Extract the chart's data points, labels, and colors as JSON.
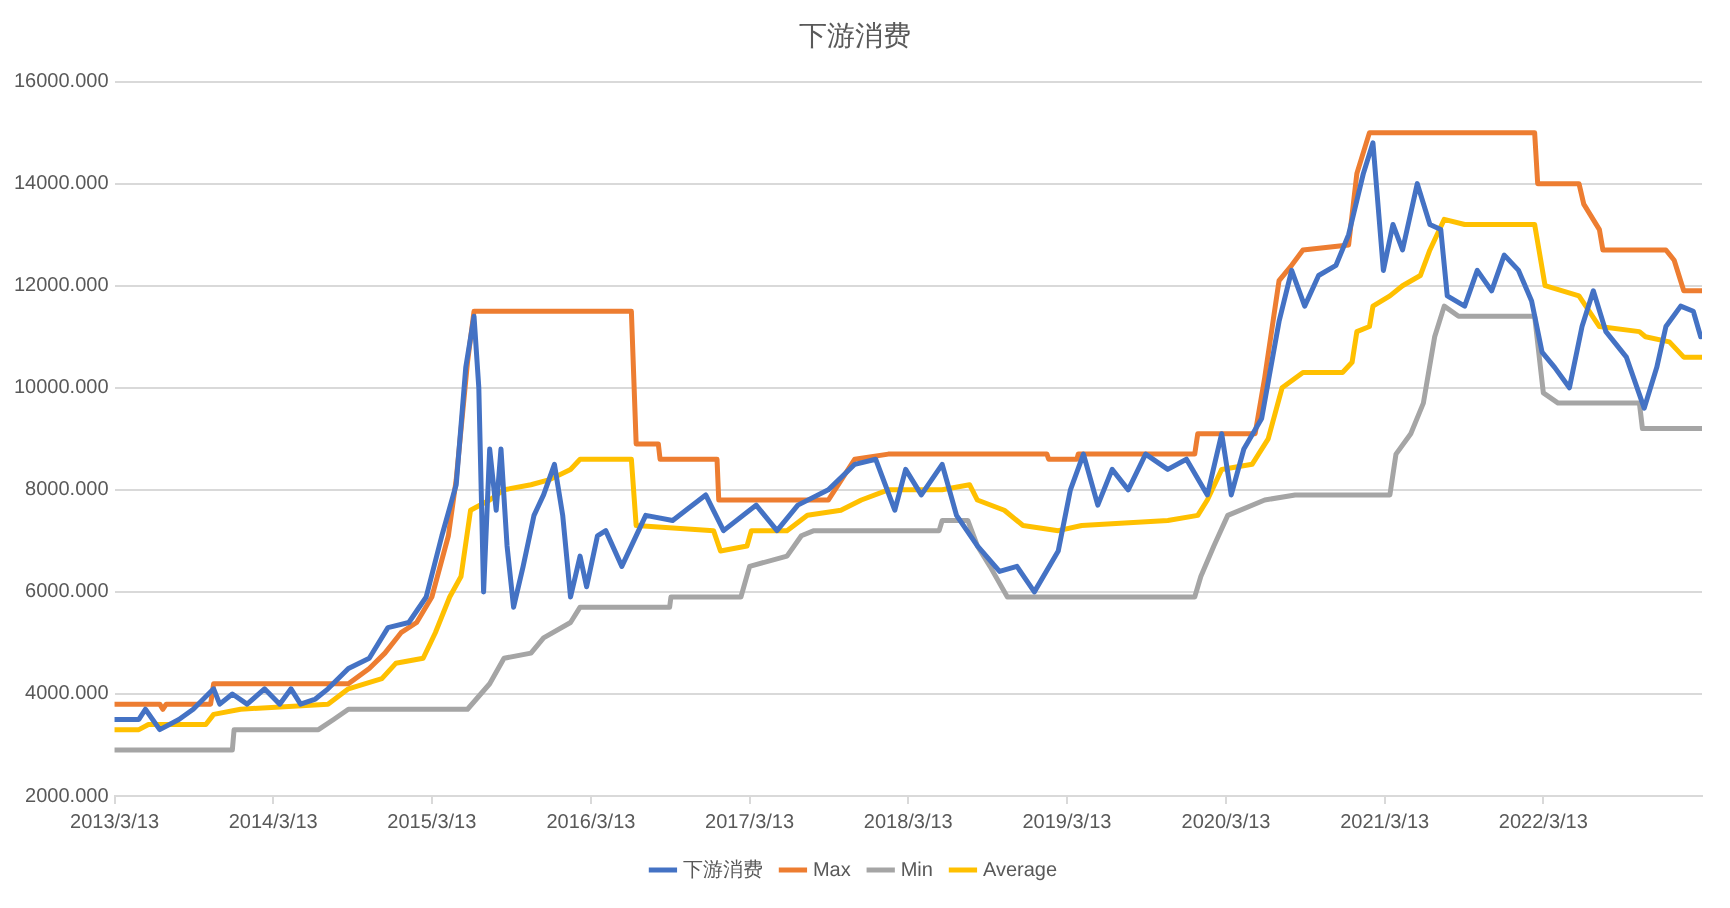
{
  "chart_data": {
    "type": "line",
    "title": "下游消费",
    "xlim": [
      "2013-03-13",
      "2023-03-13"
    ],
    "xticks": [
      {
        "value": "2013-03-13",
        "label": "2013/3/13"
      },
      {
        "value": "2014-03-13",
        "label": "2014/3/13"
      },
      {
        "value": "2015-03-13",
        "label": "2015/3/13"
      },
      {
        "value": "2016-03-13",
        "label": "2016/3/13"
      },
      {
        "value": "2017-03-13",
        "label": "2017/3/13"
      },
      {
        "value": "2018-03-13",
        "label": "2018/3/13"
      },
      {
        "value": "2019-03-13",
        "label": "2019/3/13"
      },
      {
        "value": "2020-03-13",
        "label": "2020/3/13"
      },
      {
        "value": "2021-03-13",
        "label": "2021/3/13"
      },
      {
        "value": "2022-03-13",
        "label": "2022/3/13"
      }
    ],
    "ylim": [
      2000,
      16000
    ],
    "yticks": [
      {
        "value": 2000,
        "label": "2000.000"
      },
      {
        "value": 4000,
        "label": "4000.000"
      },
      {
        "value": 6000,
        "label": "6000.000"
      },
      {
        "value": 8000,
        "label": "8000.000"
      },
      {
        "value": 10000,
        "label": "10000.000"
      },
      {
        "value": 12000,
        "label": "12000.000"
      },
      {
        "value": 14000,
        "label": "14000.000"
      },
      {
        "value": 16000,
        "label": "16000.000"
      }
    ],
    "grid": "y",
    "legend": "bottom",
    "marker": "none",
    "line_style": "solid",
    "series": [
      {
        "name": "下游消费",
        "color": "#4472c4",
        "x": [
          "2013-03-13",
          "2013-05-08",
          "2013-05-23",
          "2013-06-25",
          "2013-08-08",
          "2013-09-10",
          "2013-10-27",
          "2013-11-10",
          "2013-12-09",
          "2014-01-12",
          "2014-02-21",
          "2014-03-28",
          "2014-04-23",
          "2014-05-15",
          "2014-06-18",
          "2014-07-17",
          "2014-09-02",
          "2014-10-20",
          "2014-12-02",
          "2015-01-19",
          "2015-02-28",
          "2015-04-05",
          "2015-05-08",
          "2015-05-30",
          "2015-06-18",
          "2015-06-29",
          "2015-07-10",
          "2015-07-24",
          "2015-08-08",
          "2015-08-19",
          "2015-09-02",
          "2015-09-17",
          "2015-10-09",
          "2015-11-03",
          "2015-11-25",
          "2015-12-20",
          "2016-01-08",
          "2016-01-26",
          "2016-02-17",
          "2016-03-03",
          "2016-03-28",
          "2016-04-16",
          "2016-05-23",
          "2016-07-17",
          "2016-09-17",
          "2016-12-02",
          "2017-01-12",
          "2017-03-28",
          "2017-05-15",
          "2017-07-02",
          "2017-09-10",
          "2017-11-10",
          "2017-12-28",
          "2018-02-10",
          "2018-03-07",
          "2018-04-12",
          "2018-05-30",
          "2018-07-02",
          "2018-08-19",
          "2018-10-09",
          "2018-11-18",
          "2018-12-28",
          "2019-02-21",
          "2019-03-21",
          "2019-04-20",
          "2019-05-23",
          "2019-06-25",
          "2019-08-01",
          "2019-09-10",
          "2019-10-31",
          "2019-12-13",
          "2020-01-30",
          "2020-03-03",
          "2020-03-25",
          "2020-04-23",
          "2020-06-03",
          "2020-07-13",
          "2020-08-11",
          "2020-09-10",
          "2020-10-12",
          "2020-11-21",
          "2020-12-20",
          "2021-01-23",
          "2021-02-14",
          "2021-03-10",
          "2021-04-01",
          "2021-04-23",
          "2021-05-27",
          "2021-06-25",
          "2021-07-20",
          "2021-08-04",
          "2021-09-13",
          "2021-10-12",
          "2021-11-14",
          "2021-12-13",
          "2022-01-15",
          "2022-02-14",
          "2022-03-10",
          "2022-04-08",
          "2022-05-12",
          "2022-06-10",
          "2022-07-06",
          "2022-08-04",
          "2022-09-20",
          "2022-10-31",
          "2022-11-29",
          "2022-12-20",
          "2023-01-23",
          "2023-02-21",
          "2023-03-10"
        ],
        "values": [
          3500,
          3500,
          3700,
          3300,
          3500,
          3700,
          4100,
          3800,
          4000,
          3800,
          4100,
          3800,
          4100,
          3800,
          3900,
          4100,
          4500,
          4700,
          5300,
          5400,
          5900,
          7100,
          8100,
          10400,
          11400,
          10000,
          6000,
          8800,
          7600,
          8800,
          6900,
          5700,
          6500,
          7500,
          7900,
          8500,
          7500,
          5900,
          6700,
          6100,
          7100,
          7200,
          6500,
          7500,
          7400,
          7900,
          7200,
          7700,
          7200,
          7700,
          8000,
          8500,
          8600,
          7600,
          8400,
          7900,
          8500,
          7500,
          6900,
          6400,
          6500,
          6000,
          6800,
          8000,
          8700,
          7700,
          8400,
          8000,
          8700,
          8400,
          8600,
          7900,
          9100,
          7900,
          8800,
          9400,
          11300,
          12300,
          11600,
          12200,
          12400,
          13000,
          14200,
          14800,
          12300,
          13200,
          12700,
          14000,
          13200,
          13100,
          11800,
          11600,
          12300,
          11900,
          12600,
          12300,
          11700,
          10700,
          10400,
          10000,
          11200,
          11900,
          11100,
          10600,
          9600,
          10400,
          11200,
          11600,
          11500,
          11000
        ]
      },
      {
        "name": "Max",
        "color": "#ed7d31",
        "x": [
          "2013-03-13",
          "2013-06-25",
          "2013-07-02",
          "2013-07-10",
          "2013-10-20",
          "2013-10-27",
          "2014-09-02",
          "2014-10-20",
          "2014-11-25",
          "2015-01-01",
          "2015-02-06",
          "2015-03-13",
          "2015-04-20",
          "2015-05-08",
          "2015-06-03",
          "2015-06-18",
          "2016-06-14",
          "2016-06-25",
          "2016-08-15",
          "2016-08-19",
          "2016-12-28",
          "2017-01-01",
          "2017-09-10",
          "2017-11-10",
          "2018-01-26",
          "2019-01-26",
          "2019-01-30",
          "2019-04-05",
          "2019-04-08",
          "2020-01-01",
          "2020-01-08",
          "2020-05-19",
          "2020-06-10",
          "2020-07-13",
          "2020-08-11",
          "2020-09-06",
          "2020-12-20",
          "2021-01-08",
          "2021-02-06",
          "2022-02-21",
          "2022-02-28",
          "2022-06-03",
          "2022-06-14",
          "2022-07-20",
          "2022-07-28",
          "2022-12-20",
          "2023-01-08",
          "2023-01-30",
          "2023-03-13"
        ],
        "values": [
          3800,
          3800,
          3700,
          3800,
          3800,
          4200,
          4200,
          4500,
          4800,
          5200,
          5400,
          5900,
          7100,
          8200,
          10500,
          11500,
          11500,
          8900,
          8900,
          8600,
          8600,
          7800,
          7800,
          8600,
          8700,
          8700,
          8600,
          8600,
          8700,
          8700,
          9100,
          9100,
          10200,
          12100,
          12400,
          12700,
          12800,
          14200,
          15000,
          15000,
          14000,
          14000,
          13600,
          13100,
          12700,
          12700,
          12500,
          11900,
          11900
        ]
      },
      {
        "name": "Min",
        "color": "#a5a5a5",
        "x": [
          "2013-03-13",
          "2013-12-09",
          "2013-12-13",
          "2014-06-25",
          "2014-07-30",
          "2014-09-02",
          "2015-06-03",
          "2015-07-24",
          "2015-08-26",
          "2015-10-27",
          "2015-11-25",
          "2016-01-26",
          "2016-02-17",
          "2016-09-10",
          "2016-09-13",
          "2017-02-21",
          "2017-03-13",
          "2017-06-07",
          "2017-07-10",
          "2017-08-08",
          "2018-05-23",
          "2018-05-30",
          "2018-07-28",
          "2018-08-19",
          "2018-09-17",
          "2018-10-27",
          "2020-01-01",
          "2020-01-15",
          "2020-02-14",
          "2020-03-17",
          "2020-06-10",
          "2020-08-19",
          "2021-03-25",
          "2021-04-08",
          "2021-05-12",
          "2021-06-10",
          "2021-07-06",
          "2021-07-28",
          "2021-08-30",
          "2022-02-21",
          "2022-03-13",
          "2022-04-16",
          "2022-10-20",
          "2022-10-27",
          "2023-03-13"
        ],
        "values": [
          2900,
          2900,
          3300,
          3300,
          3500,
          3700,
          3700,
          4200,
          4700,
          4800,
          5100,
          5400,
          5700,
          5700,
          5900,
          5900,
          6500,
          6700,
          7100,
          7200,
          7200,
          7400,
          7400,
          6900,
          6500,
          5900,
          5900,
          6300,
          6900,
          7500,
          7800,
          7900,
          7900,
          8700,
          9100,
          9700,
          11000,
          11600,
          11400,
          11400,
          9900,
          9700,
          9700,
          9200,
          9200
        ]
      },
      {
        "name": "Average",
        "color": "#ffc000",
        "x": [
          "2013-03-13",
          "2013-05-08",
          "2013-05-30",
          "2013-10-09",
          "2013-10-27",
          "2013-12-28",
          "2014-07-17",
          "2014-09-02",
          "2014-11-18",
          "2014-12-20",
          "2015-02-21",
          "2015-03-21",
          "2015-04-23",
          "2015-05-19",
          "2015-06-10",
          "2015-07-24",
          "2015-08-26",
          "2015-10-27",
          "2015-12-09",
          "2016-01-26",
          "2016-02-17",
          "2016-06-14",
          "2016-06-25",
          "2016-12-20",
          "2017-01-05",
          "2017-03-07",
          "2017-03-17",
          "2017-06-07",
          "2017-07-24",
          "2017-10-09",
          "2017-11-25",
          "2018-01-26",
          "2018-05-30",
          "2018-08-01",
          "2018-08-19",
          "2018-10-20",
          "2018-12-02",
          "2019-02-21",
          "2019-04-16",
          "2019-10-31",
          "2020-01-08",
          "2020-01-30",
          "2020-03-03",
          "2020-05-12",
          "2020-06-18",
          "2020-07-20",
          "2020-09-06",
          "2020-12-06",
          "2020-12-28",
          "2021-01-08",
          "2021-02-06",
          "2021-02-14",
          "2021-03-25",
          "2021-04-23",
          "2021-06-03",
          "2021-06-25",
          "2021-07-28",
          "2021-09-13",
          "2022-02-21",
          "2022-03-17",
          "2022-06-03",
          "2022-07-20",
          "2022-10-20",
          "2022-11-03",
          "2022-12-28",
          "2023-01-30",
          "2023-03-13"
        ],
        "values": [
          3300,
          3300,
          3400,
          3400,
          3600,
          3700,
          3800,
          4100,
          4300,
          4600,
          4700,
          5200,
          5900,
          6300,
          7600,
          7800,
          8000,
          8100,
          8200,
          8400,
          8600,
          8600,
          7300,
          7200,
          6800,
          6900,
          7200,
          7200,
          7500,
          7600,
          7800,
          8000,
          8000,
          8100,
          7800,
          7600,
          7300,
          7200,
          7300,
          7400,
          7500,
          7800,
          8400,
          8500,
          9000,
          10000,
          10300,
          10300,
          10500,
          11100,
          11200,
          11600,
          11800,
          12000,
          12200,
          12700,
          13300,
          13200,
          13200,
          12000,
          11800,
          11200,
          11100,
          11000,
          10900,
          10600,
          10600
        ]
      }
    ]
  }
}
